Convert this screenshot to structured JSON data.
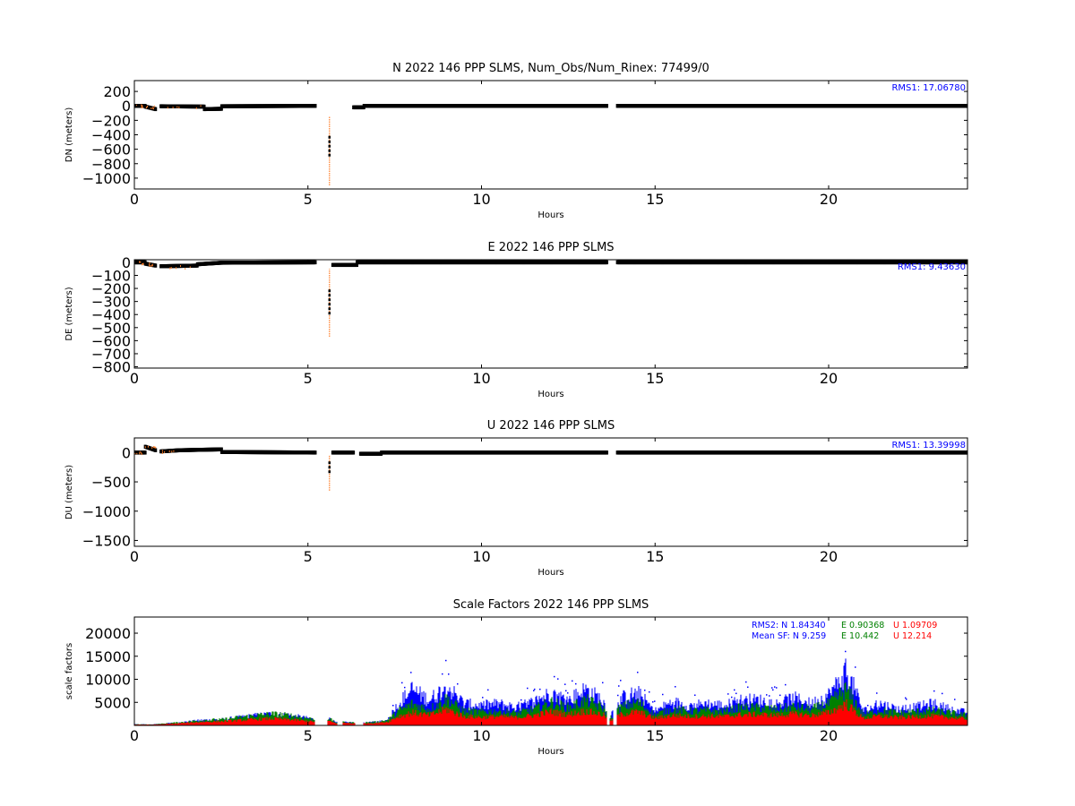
{
  "chart_data": [
    {
      "type": "scatter",
      "title": "N 2022 146 PPP  SLMS, Num_Obs/Num_Rinex: 77499/0",
      "xlabel": "Hours",
      "ylabel": "DN (meters)",
      "xlim": [
        0,
        24
      ],
      "ylim": [
        -1150,
        350
      ],
      "xticks": [
        0,
        5,
        10,
        15,
        20
      ],
      "yticks": [
        200,
        0,
        -200,
        -400,
        -600,
        -800,
        -1000
      ],
      "annotation": "RMS1: 17.06780",
      "colors": {
        "points": "#000000",
        "error": "#ff7f2a",
        "annotation": "#0000ff"
      },
      "segments": [
        {
          "x": [
            0.0,
            0.3
          ],
          "y": [
            0,
            0
          ]
        },
        {
          "x": [
            0.3,
            0.6
          ],
          "y": [
            -10,
            -45
          ]
        },
        {
          "x": [
            0.75,
            2.0
          ],
          "y": [
            -5,
            -10
          ]
        },
        {
          "x": [
            2.0,
            2.5
          ],
          "y": [
            -45,
            -40
          ]
        },
        {
          "x": [
            2.5,
            5.2
          ],
          "y": [
            -5,
            0
          ]
        },
        {
          "x": [
            6.3,
            6.6
          ],
          "y": [
            -20,
            -20
          ]
        },
        {
          "x": [
            6.6,
            13.6
          ],
          "y": [
            0,
            0
          ]
        },
        {
          "x": [
            13.9,
            24.0
          ],
          "y": [
            0,
            0
          ]
        }
      ],
      "spikes": [
        {
          "x": 5.62,
          "y": [
            -1100,
            -150
          ],
          "core": [
            -700,
            -400
          ]
        }
      ]
    },
    {
      "type": "scatter",
      "title": "E 2022 146 PPP  SLMS",
      "xlabel": "Hours",
      "ylabel": "DE (meters)",
      "xlim": [
        0,
        24
      ],
      "ylim": [
        -810,
        20
      ],
      "xticks": [
        0,
        5,
        10,
        15,
        20
      ],
      "yticks": [
        0,
        -100,
        -200,
        -300,
        -400,
        -500,
        -600,
        -700,
        -800
      ],
      "annotation": "RMS1:  9.43630",
      "colors": {
        "points": "#000000",
        "error": "#ff7f2a",
        "annotation": "#0000ff"
      },
      "segments": [
        {
          "x": [
            0.0,
            0.3
          ],
          "y": [
            0,
            0
          ]
        },
        {
          "x": [
            0.3,
            0.6
          ],
          "y": [
            -10,
            -25
          ]
        },
        {
          "x": [
            0.75,
            1.8
          ],
          "y": [
            -30,
            -25
          ]
        },
        {
          "x": [
            1.8,
            2.5
          ],
          "y": [
            -15,
            -3
          ]
        },
        {
          "x": [
            2.5,
            5.2
          ],
          "y": [
            -3,
            0
          ]
        },
        {
          "x": [
            5.7,
            6.4
          ],
          "y": [
            -20,
            -20
          ]
        },
        {
          "x": [
            6.4,
            13.6
          ],
          "y": [
            0,
            0
          ]
        },
        {
          "x": [
            13.9,
            24.0
          ],
          "y": [
            0,
            0
          ]
        }
      ],
      "spikes": [
        {
          "x": 5.62,
          "y": [
            -570,
            -50
          ],
          "core": [
            -400,
            -200
          ]
        }
      ]
    },
    {
      "type": "scatter",
      "title": "U 2022 146 PPP  SLMS",
      "xlabel": "Hours",
      "ylabel": "DU (meters)",
      "xlim": [
        0,
        24
      ],
      "ylim": [
        -1600,
        250
      ],
      "xticks": [
        0,
        5,
        10,
        15,
        20
      ],
      "yticks": [
        0,
        -500,
        -1000,
        -1500
      ],
      "annotation": "RMS1: 13.39998",
      "colors": {
        "points": "#000000",
        "error": "#ff7f2a",
        "annotation": "#0000ff"
      },
      "segments": [
        {
          "x": [
            0.0,
            0.3
          ],
          "y": [
            0,
            0
          ]
        },
        {
          "x": [
            0.3,
            0.6
          ],
          "y": [
            100,
            40
          ]
        },
        {
          "x": [
            0.75,
            1.3
          ],
          "y": [
            20,
            40
          ]
        },
        {
          "x": [
            1.3,
            2.5
          ],
          "y": [
            40,
            55
          ]
        },
        {
          "x": [
            2.5,
            5.2
          ],
          "y": [
            10,
            0
          ]
        },
        {
          "x": [
            5.7,
            6.3
          ],
          "y": [
            0,
            0
          ]
        },
        {
          "x": [
            6.5,
            7.1
          ],
          "y": [
            -20,
            -20
          ]
        },
        {
          "x": [
            7.1,
            13.6
          ],
          "y": [
            0,
            0
          ]
        },
        {
          "x": [
            13.9,
            24.0
          ],
          "y": [
            0,
            0
          ]
        }
      ],
      "spikes": [
        {
          "x": 5.62,
          "y": [
            -650,
            -50
          ],
          "core": [
            -350,
            -150
          ]
        }
      ]
    },
    {
      "type": "scatter",
      "title": "Scale Factors 2022 146 PPP  SLMS",
      "xlabel": "Hours",
      "ylabel": "scale factors",
      "xlim": [
        0,
        24
      ],
      "ylim": [
        0,
        23500
      ],
      "xticks": [
        0,
        5,
        10,
        15,
        20
      ],
      "yticks": [
        5000,
        10000,
        15000,
        20000
      ],
      "legend": [
        {
          "prefix": "RMS2: N  1.84340",
          "e": "E  0.90368",
          "u": "U  1.09709"
        },
        {
          "prefix": "Mean SF: N   9.259",
          "e": "E  10.442",
          "u": "U  12.214"
        }
      ],
      "series": [
        {
          "name": "N",
          "color": "#0000ff"
        },
        {
          "name": "E",
          "color": "#008000"
        },
        {
          "name": "U",
          "color": "#ff0000"
        }
      ],
      "envelope": {
        "x": [
          0.0,
          0.5,
          1.0,
          1.5,
          2.0,
          2.5,
          3.0,
          3.5,
          4.0,
          4.5,
          5.0,
          5.2,
          5.6,
          5.8,
          6.0,
          6.5,
          7.0,
          7.3,
          7.6,
          8.0,
          8.5,
          9.0,
          9.5,
          10.0,
          10.5,
          11.0,
          11.5,
          12.0,
          12.5,
          13.0,
          13.5,
          13.7,
          14.0,
          14.5,
          15.0,
          15.5,
          16.0,
          16.5,
          17.0,
          17.5,
          18.0,
          18.5,
          19.0,
          19.5,
          20.0,
          20.3,
          20.5,
          20.8,
          21.0,
          21.5,
          22.0,
          22.5,
          23.0,
          23.5,
          24.0
        ],
        "N": [
          300,
          250,
          600,
          1000,
          1500,
          1600,
          2200,
          2800,
          3200,
          2800,
          2000,
          1700,
          2000,
          800,
          900,
          700,
          1000,
          1500,
          6000,
          10000,
          7000,
          11000,
          6000,
          5500,
          6000,
          5000,
          6500,
          9000,
          7000,
          10000,
          7000,
          2500,
          7500,
          9000,
          4000,
          6500,
          5500,
          6000,
          5500,
          7000,
          7000,
          6000,
          7500,
          6000,
          8500,
          12000,
          15000,
          9000,
          4000,
          6000,
          4500,
          5000,
          6000,
          4500,
          3500
        ],
        "E": [
          300,
          250,
          600,
          1000,
          1500,
          1600,
          2200,
          2800,
          3200,
          2800,
          2000,
          1700,
          2000,
          800,
          900,
          700,
          1000,
          1500,
          4000,
          6000,
          4500,
          7500,
          4000,
          3800,
          4000,
          3500,
          4500,
          6500,
          5000,
          7000,
          5000,
          2000,
          5000,
          6500,
          3000,
          4500,
          4000,
          4200,
          4000,
          5000,
          5000,
          4500,
          5200,
          4500,
          6000,
          8500,
          10000,
          6000,
          3000,
          4200,
          3500,
          3800,
          4200,
          3500,
          2800
        ],
        "U": [
          250,
          200,
          400,
          700,
          1000,
          1100,
          1400,
          1700,
          1900,
          1600,
          1200,
          1000,
          1200,
          600,
          700,
          500,
          700,
          1000,
          2500,
          3500,
          2800,
          4500,
          2500,
          2300,
          2500,
          2200,
          2800,
          3800,
          3000,
          4000,
          3000,
          1200,
          3000,
          3800,
          2000,
          2800,
          2500,
          2600,
          2500,
          3000,
          3000,
          2800,
          3200,
          2800,
          3500,
          5000,
          6000,
          3500,
          2000,
          2600,
          2200,
          2400,
          2600,
          2200,
          1800
        ]
      },
      "gaps": [
        [
          5.2,
          5.55
        ],
        [
          5.85,
          6.0
        ],
        [
          6.35,
          6.6
        ],
        [
          13.6,
          13.7
        ],
        [
          13.8,
          13.9
        ]
      ]
    }
  ]
}
